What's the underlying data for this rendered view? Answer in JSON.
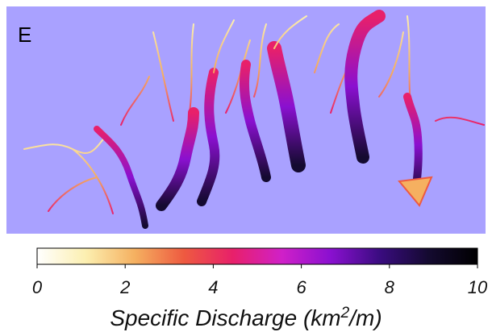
{
  "panel_label": "E",
  "colorbar": {
    "lim": [
      0,
      10
    ],
    "ticks": [
      0,
      2,
      4,
      6,
      8,
      10
    ],
    "colormap": [
      "#ffffff",
      "#fcefb0",
      "#f5b060",
      "#ee5a40",
      "#e8206a",
      "#d020c8",
      "#8a10d0",
      "#3a0c80",
      "#140a30",
      "#000000"
    ],
    "label": {
      "prefix": "Specific Discharge (km",
      "superscript": "2",
      "suffix": "/m)"
    }
  }
}
